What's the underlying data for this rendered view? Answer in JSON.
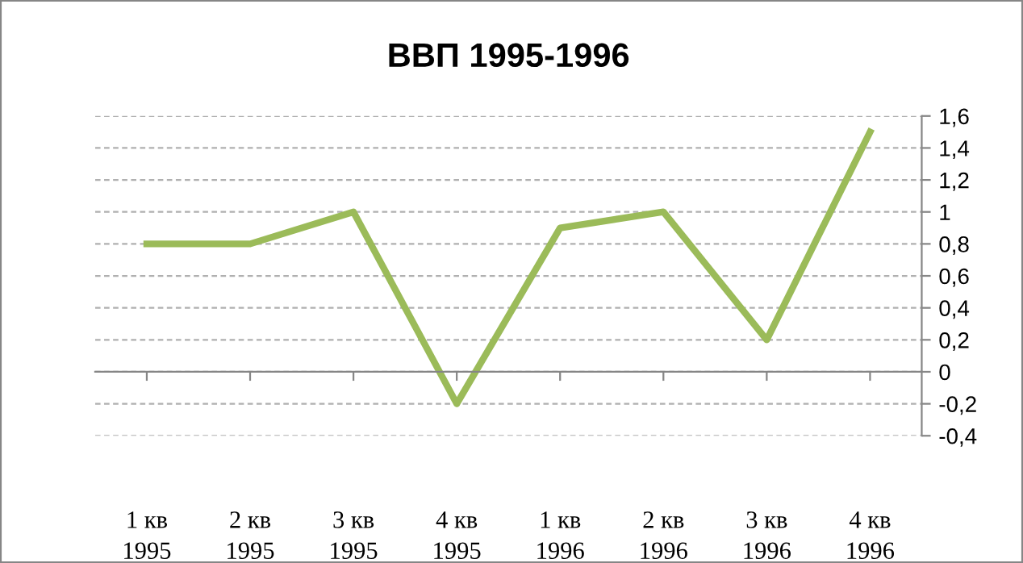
{
  "chart_data": {
    "type": "line",
    "title": "ВВП 1995-1996",
    "categories": [
      "1 кв\n1995",
      "2 кв\n1995",
      "3 кв\n1995",
      "4 кв\n1995",
      "1 кв\n1996",
      "2 кв\n1996",
      "3 кв\n1996",
      "4 кв\n1996"
    ],
    "series": [
      {
        "color": "#9bbb59",
        "values": [
          0.8,
          0.8,
          1.0,
          -0.2,
          0.9,
          1.0,
          0.2,
          1.5
        ]
      }
    ],
    "ylim": [
      -0.4,
      1.6
    ],
    "yticks": [
      {
        "value": -0.4,
        "label": "-0,4"
      },
      {
        "value": -0.2,
        "label": "-0,2"
      },
      0,
      {
        "value": 0.2,
        "label": "0,2"
      },
      {
        "value": 0.4,
        "label": "0,4"
      },
      {
        "value": 0.6,
        "label": "0,6"
      },
      {
        "value": 0.8,
        "label": "0,8"
      },
      1,
      {
        "value": 1.2,
        "label": "1,2"
      },
      {
        "value": 1.4,
        "label": "1,4"
      },
      {
        "value": 1.6,
        "label": "1,6"
      }
    ],
    "grid": "y",
    "marker": "none",
    "line_style": "solid",
    "legend": false
  }
}
